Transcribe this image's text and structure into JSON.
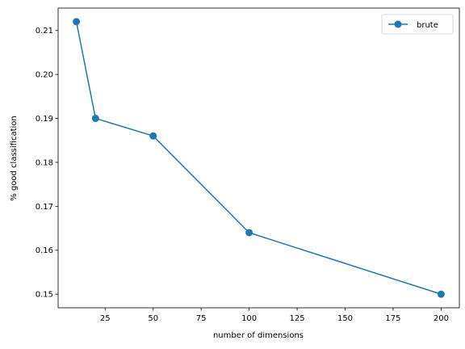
{
  "chart_data": {
    "type": "line",
    "title": "",
    "xlabel": "number of dimensions",
    "ylabel": "% good classification",
    "xlim": [
      0.5,
      209.5
    ],
    "ylim": [
      0.1469,
      0.2151
    ],
    "x_ticks": [
      25,
      50,
      75,
      100,
      125,
      150,
      175,
      200
    ],
    "y_ticks": [
      0.15,
      0.16,
      0.17,
      0.18,
      0.19,
      0.2,
      0.21
    ],
    "x_tick_labels": [
      "25",
      "50",
      "75",
      "100",
      "125",
      "150",
      "175",
      "200"
    ],
    "y_tick_labels": [
      "0.15",
      "0.16",
      "0.17",
      "0.18",
      "0.19",
      "0.20",
      "0.21"
    ],
    "grid": false,
    "legend_position": "upper-right",
    "series": [
      {
        "name": "brute",
        "color": "#1f77b4",
        "marker": "circle",
        "x": [
          10,
          20,
          50,
          100,
          200
        ],
        "y": [
          0.212,
          0.19,
          0.186,
          0.164,
          0.15
        ]
      }
    ]
  }
}
